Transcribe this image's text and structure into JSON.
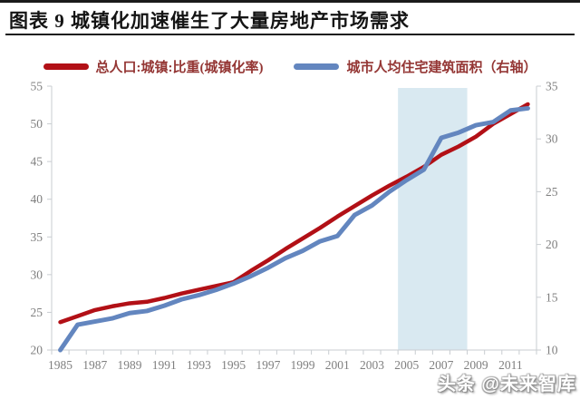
{
  "header": {
    "title": "图表 9 城镇化加速催生了大量房地产市场需求"
  },
  "watermark": {
    "text": "头条 @未来智库"
  },
  "chart_data": {
    "type": "line",
    "title": "图表 9 城镇化加速催生了大量房地产市场需求",
    "x": [
      1985,
      1986,
      1987,
      1988,
      1989,
      1990,
      1991,
      1992,
      1993,
      1994,
      1995,
      1996,
      1997,
      1998,
      1999,
      2000,
      2001,
      2002,
      2003,
      2004,
      2005,
      2006,
      2007,
      2008,
      2009,
      2010,
      2011,
      2012
    ],
    "x_label_interval": 2,
    "series": [
      {
        "name": "总人口:城镇:比重(城镇化率)",
        "axis": "left",
        "color": "#b21016",
        "values": [
          23.7,
          24.5,
          25.3,
          25.8,
          26.2,
          26.4,
          26.9,
          27.5,
          28.0,
          28.5,
          29.0,
          30.5,
          31.9,
          33.4,
          34.8,
          36.2,
          37.7,
          39.1,
          40.5,
          41.8,
          43.0,
          44.3,
          45.9,
          47.0,
          48.3,
          50.0,
          51.3,
          52.6
        ]
      },
      {
        "name": "城市人均住宅建筑面积（右轴）",
        "axis": "right",
        "color": "#6386bf",
        "values": [
          10.0,
          12.4,
          12.7,
          13.0,
          13.5,
          13.7,
          14.2,
          14.8,
          15.2,
          15.7,
          16.3,
          17.0,
          17.8,
          18.7,
          19.4,
          20.3,
          20.8,
          22.8,
          23.7,
          25.0,
          26.1,
          27.1,
          30.1,
          30.6,
          31.3,
          31.6,
          32.7,
          32.9
        ]
      }
    ],
    "left_axis": {
      "min": 20,
      "max": 55,
      "step": 5
    },
    "right_axis": {
      "min": 10,
      "max": 35,
      "step": 5
    },
    "highlight_band": {
      "from": 2005,
      "to": 2008,
      "color": "#d9e9f1"
    },
    "grid": false,
    "legend_position": "top",
    "axis_line_color": "#c9cdd1",
    "axis_text_color": "#7f7f7f"
  }
}
